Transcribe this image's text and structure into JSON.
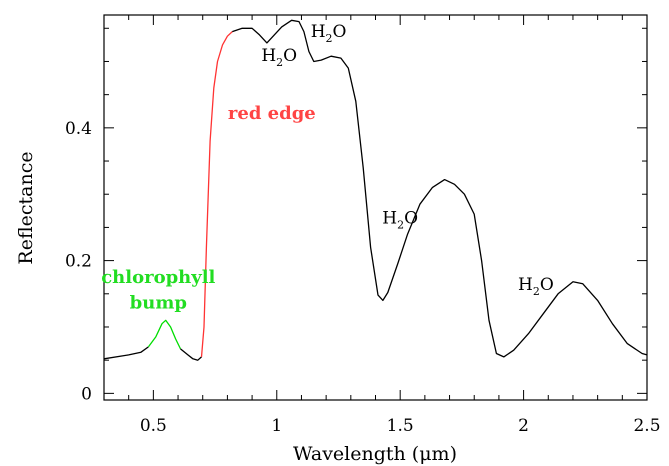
{
  "chart_data": {
    "type": "line",
    "xlabel": "Wavelength (μm)",
    "ylabel": "Reflectance",
    "xlim": [
      0.3,
      2.5
    ],
    "ylim": [
      -0.01,
      0.57
    ],
    "xticks": [
      "0.5",
      "1",
      "1.5",
      "2",
      "2.5"
    ],
    "yticks": [
      "0",
      "0.2",
      "0.4"
    ],
    "xtick_values": [
      0.5,
      1.0,
      1.5,
      2.0,
      2.5
    ],
    "ytick_values": [
      0.0,
      0.2,
      0.4
    ],
    "grid": false,
    "series": [
      {
        "color": "#000000",
        "segment": "base",
        "points": [
          [
            0.3,
            0.052
          ],
          [
            0.4,
            0.058
          ],
          [
            0.45,
            0.062
          ],
          [
            0.48,
            0.07
          ]
        ]
      },
      {
        "color": "#00dd00",
        "segment": "chlorophyll",
        "points": [
          [
            0.48,
            0.07
          ],
          [
            0.51,
            0.085
          ],
          [
            0.535,
            0.105
          ],
          [
            0.55,
            0.11
          ],
          [
            0.57,
            0.1
          ],
          [
            0.59,
            0.082
          ],
          [
            0.61,
            0.067
          ]
        ]
      },
      {
        "color": "#000000",
        "segment": "visible-trough",
        "points": [
          [
            0.61,
            0.067
          ],
          [
            0.64,
            0.058
          ],
          [
            0.66,
            0.052
          ],
          [
            0.68,
            0.05
          ],
          [
            0.695,
            0.055
          ]
        ]
      },
      {
        "color": "#ff3333",
        "segment": "red-edge",
        "points": [
          [
            0.695,
            0.055
          ],
          [
            0.705,
            0.1
          ],
          [
            0.715,
            0.22
          ],
          [
            0.73,
            0.38
          ],
          [
            0.745,
            0.46
          ],
          [
            0.76,
            0.5
          ],
          [
            0.78,
            0.525
          ],
          [
            0.8,
            0.538
          ],
          [
            0.82,
            0.545
          ]
        ]
      },
      {
        "color": "#000000",
        "segment": "nir",
        "points": [
          [
            0.82,
            0.545
          ],
          [
            0.86,
            0.55
          ],
          [
            0.9,
            0.55
          ],
          [
            0.93,
            0.54
          ],
          [
            0.96,
            0.528
          ],
          [
            0.99,
            0.54
          ],
          [
            1.02,
            0.552
          ],
          [
            1.06,
            0.562
          ],
          [
            1.09,
            0.56
          ],
          [
            1.11,
            0.545
          ],
          [
            1.13,
            0.515
          ],
          [
            1.15,
            0.5
          ],
          [
            1.18,
            0.502
          ],
          [
            1.22,
            0.508
          ],
          [
            1.26,
            0.505
          ],
          [
            1.29,
            0.49
          ],
          [
            1.32,
            0.44
          ],
          [
            1.35,
            0.34
          ],
          [
            1.38,
            0.22
          ],
          [
            1.41,
            0.148
          ],
          [
            1.43,
            0.14
          ],
          [
            1.45,
            0.152
          ],
          [
            1.49,
            0.195
          ],
          [
            1.53,
            0.24
          ],
          [
            1.58,
            0.285
          ],
          [
            1.63,
            0.31
          ],
          [
            1.68,
            0.322
          ],
          [
            1.72,
            0.315
          ],
          [
            1.76,
            0.3
          ],
          [
            1.8,
            0.27
          ],
          [
            1.83,
            0.2
          ],
          [
            1.86,
            0.11
          ],
          [
            1.89,
            0.06
          ],
          [
            1.92,
            0.055
          ],
          [
            1.96,
            0.065
          ],
          [
            2.02,
            0.09
          ],
          [
            2.08,
            0.12
          ],
          [
            2.14,
            0.15
          ],
          [
            2.2,
            0.168
          ],
          [
            2.24,
            0.165
          ],
          [
            2.3,
            0.14
          ],
          [
            2.36,
            0.105
          ],
          [
            2.42,
            0.075
          ],
          [
            2.48,
            0.06
          ],
          [
            2.5,
            0.058
          ]
        ]
      }
    ],
    "annotations": [
      {
        "text": "red edge",
        "color": "#ff4444",
        "x": 0.98,
        "y": 0.413
      },
      {
        "text": "chlorophyll",
        "color": "#22dd22",
        "x": 0.52,
        "y": 0.166
      },
      {
        "text": "bump",
        "color": "#22dd22",
        "x": 0.52,
        "y": 0.128
      },
      {
        "text": "H2O",
        "color": "#000000",
        "x": 1.01,
        "y": 0.501,
        "label": "H",
        "sub": "2",
        "tail": "O"
      },
      {
        "text": "H2O",
        "color": "#000000",
        "x": 1.21,
        "y": 0.537,
        "label": "H",
        "sub": "2",
        "tail": "O"
      },
      {
        "text": "H2O",
        "color": "#000000",
        "x": 1.5,
        "y": 0.256,
        "label": "H",
        "sub": "2",
        "tail": "O"
      },
      {
        "text": "H2O",
        "color": "#000000",
        "x": 2.05,
        "y": 0.156,
        "label": "H",
        "sub": "2",
        "tail": "O"
      }
    ]
  }
}
